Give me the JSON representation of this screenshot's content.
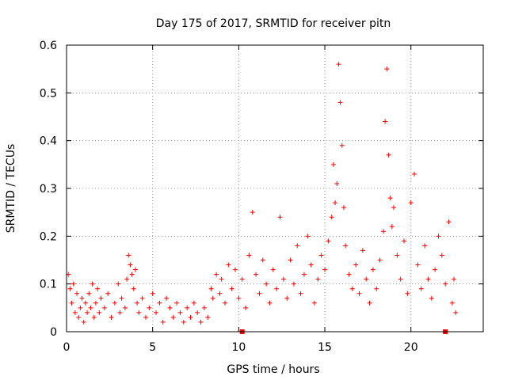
{
  "chart_data": {
    "type": "scatter",
    "title": "Day 175 of 2017, SRMTID for receiver pitn",
    "xlabel": "GPS time / hours",
    "ylabel": "SRMTID / TECUs",
    "xlim": [
      0,
      24.2
    ],
    "ylim": [
      0,
      0.6
    ],
    "xticks": [
      0,
      5,
      10,
      15,
      20
    ],
    "yticks": [
      0,
      0.1,
      0.2,
      0.3,
      0.4,
      0.5,
      0.6
    ],
    "ytick_labels": [
      "0",
      "0.1",
      "0.2",
      "0.3",
      "0.4",
      "0.5",
      "0.6"
    ],
    "grid": true,
    "marker": "plus",
    "series_color": "#ff0000",
    "series": [
      {
        "name": "SRMTID",
        "points": [
          [
            0.1,
            0.12
          ],
          [
            0.2,
            0.09
          ],
          [
            0.3,
            0.06
          ],
          [
            0.4,
            0.1
          ],
          [
            0.5,
            0.04
          ],
          [
            0.6,
            0.08
          ],
          [
            0.7,
            0.03
          ],
          [
            0.8,
            0.05
          ],
          [
            0.9,
            0.07
          ],
          [
            1.0,
            0.02
          ],
          [
            1.1,
            0.06
          ],
          [
            1.2,
            0.04
          ],
          [
            1.3,
            0.08
          ],
          [
            1.4,
            0.05
          ],
          [
            1.5,
            0.1
          ],
          [
            1.6,
            0.03
          ],
          [
            1.7,
            0.06
          ],
          [
            1.8,
            0.09
          ],
          [
            1.9,
            0.04
          ],
          [
            2.0,
            0.07
          ],
          [
            2.2,
            0.05
          ],
          [
            2.4,
            0.08
          ],
          [
            2.6,
            0.03
          ],
          [
            2.8,
            0.06
          ],
          [
            3.0,
            0.1
          ],
          [
            3.1,
            0.04
          ],
          [
            3.2,
            0.07
          ],
          [
            3.4,
            0.05
          ],
          [
            3.5,
            0.11
          ],
          [
            3.6,
            0.16
          ],
          [
            3.7,
            0.14
          ],
          [
            3.8,
            0.12
          ],
          [
            3.9,
            0.09
          ],
          [
            4.0,
            0.13
          ],
          [
            4.1,
            0.06
          ],
          [
            4.2,
            0.04
          ],
          [
            4.4,
            0.07
          ],
          [
            4.6,
            0.03
          ],
          [
            4.8,
            0.05
          ],
          [
            5.0,
            0.08
          ],
          [
            5.2,
            0.04
          ],
          [
            5.4,
            0.06
          ],
          [
            5.6,
            0.02
          ],
          [
            5.8,
            0.07
          ],
          [
            6.0,
            0.05
          ],
          [
            6.2,
            0.03
          ],
          [
            6.4,
            0.06
          ],
          [
            6.6,
            0.04
          ],
          [
            6.8,
            0.02
          ],
          [
            7.0,
            0.05
          ],
          [
            7.2,
            0.03
          ],
          [
            7.4,
            0.06
          ],
          [
            7.6,
            0.04
          ],
          [
            7.8,
            0.02
          ],
          [
            8.0,
            0.05
          ],
          [
            8.2,
            0.03
          ],
          [
            8.4,
            0.09
          ],
          [
            8.5,
            0.07
          ],
          [
            8.7,
            0.12
          ],
          [
            8.9,
            0.08
          ],
          [
            9.0,
            0.11
          ],
          [
            9.2,
            0.06
          ],
          [
            9.4,
            0.14
          ],
          [
            9.6,
            0.09
          ],
          [
            9.8,
            0.13
          ],
          [
            10.0,
            0.07
          ],
          [
            10.2,
            0.11
          ],
          [
            10.4,
            0.05
          ],
          [
            10.6,
            0.16
          ],
          [
            10.8,
            0.25
          ],
          [
            11.0,
            0.12
          ],
          [
            11.2,
            0.08
          ],
          [
            11.4,
            0.15
          ],
          [
            11.6,
            0.1
          ],
          [
            11.8,
            0.06
          ],
          [
            12.0,
            0.13
          ],
          [
            12.2,
            0.09
          ],
          [
            12.4,
            0.24
          ],
          [
            12.6,
            0.11
          ],
          [
            12.8,
            0.07
          ],
          [
            13.0,
            0.15
          ],
          [
            13.2,
            0.1
          ],
          [
            13.4,
            0.18
          ],
          [
            13.6,
            0.08
          ],
          [
            13.8,
            0.12
          ],
          [
            14.0,
            0.2
          ],
          [
            14.2,
            0.14
          ],
          [
            14.4,
            0.06
          ],
          [
            14.6,
            0.11
          ],
          [
            14.8,
            0.16
          ],
          [
            15.0,
            0.13
          ],
          [
            15.2,
            0.19
          ],
          [
            15.4,
            0.24
          ],
          [
            15.5,
            0.35
          ],
          [
            15.6,
            0.27
          ],
          [
            15.7,
            0.31
          ],
          [
            15.8,
            0.56
          ],
          [
            15.9,
            0.48
          ],
          [
            16.0,
            0.39
          ],
          [
            16.1,
            0.26
          ],
          [
            16.2,
            0.18
          ],
          [
            16.4,
            0.12
          ],
          [
            16.6,
            0.09
          ],
          [
            16.8,
            0.14
          ],
          [
            17.0,
            0.08
          ],
          [
            17.2,
            0.17
          ],
          [
            17.4,
            0.11
          ],
          [
            17.6,
            0.06
          ],
          [
            17.8,
            0.13
          ],
          [
            18.0,
            0.09
          ],
          [
            18.2,
            0.15
          ],
          [
            18.4,
            0.21
          ],
          [
            18.5,
            0.44
          ],
          [
            18.6,
            0.55
          ],
          [
            18.7,
            0.37
          ],
          [
            18.8,
            0.28
          ],
          [
            18.9,
            0.22
          ],
          [
            19.0,
            0.26
          ],
          [
            19.2,
            0.16
          ],
          [
            19.4,
            0.11
          ],
          [
            19.6,
            0.19
          ],
          [
            19.8,
            0.08
          ],
          [
            20.0,
            0.27
          ],
          [
            20.2,
            0.33
          ],
          [
            20.4,
            0.14
          ],
          [
            20.6,
            0.09
          ],
          [
            20.8,
            0.18
          ],
          [
            21.0,
            0.11
          ],
          [
            21.2,
            0.07
          ],
          [
            21.4,
            0.13
          ],
          [
            21.6,
            0.2
          ],
          [
            21.8,
            0.16
          ],
          [
            22.0,
            0.1
          ],
          [
            22.2,
            0.23
          ],
          [
            22.4,
            0.06
          ],
          [
            22.5,
            0.11
          ],
          [
            22.6,
            0.04
          ]
        ]
      }
    ],
    "markers": [
      {
        "x": 10.2,
        "y": 0.0,
        "shape": "square"
      },
      {
        "x": 22.0,
        "y": 0.0,
        "shape": "square"
      }
    ]
  }
}
